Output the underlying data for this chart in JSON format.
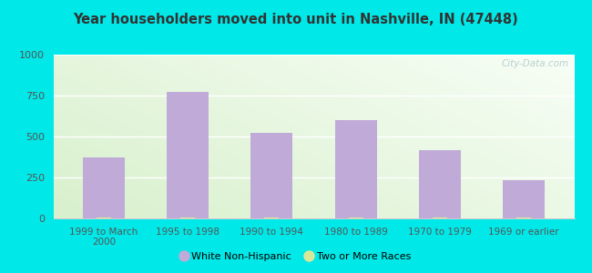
{
  "title": "Year householders moved into unit in Nashville, IN (47448)",
  "categories": [
    "1999 to March\n2000",
    "1995 to 1998",
    "1990 to 1994",
    "1980 to 1989",
    "1970 to 1979",
    "1969 or earlier"
  ],
  "white_non_hispanic": [
    370,
    775,
    525,
    600,
    415,
    235
  ],
  "two_or_more_races": [
    5,
    5,
    5,
    5,
    5,
    5
  ],
  "bar_color_white": "#c0aad8",
  "bar_color_two": "#d8e89a",
  "ylim": [
    0,
    1000
  ],
  "yticks": [
    0,
    250,
    500,
    750,
    1000
  ],
  "background_outer": "#00e8e8",
  "background_top_left": "#e8f5e0",
  "background_top_right": "#f8fef8",
  "background_bottom": "#d8f0d0",
  "legend_white_label": "White Non-Hispanic",
  "legend_two_label": "Two or More Races",
  "watermark": "City-Data.com",
  "title_color": "#333333",
  "tick_color": "#555555",
  "grid_color": "#ffffff",
  "spine_color": "#cccccc"
}
